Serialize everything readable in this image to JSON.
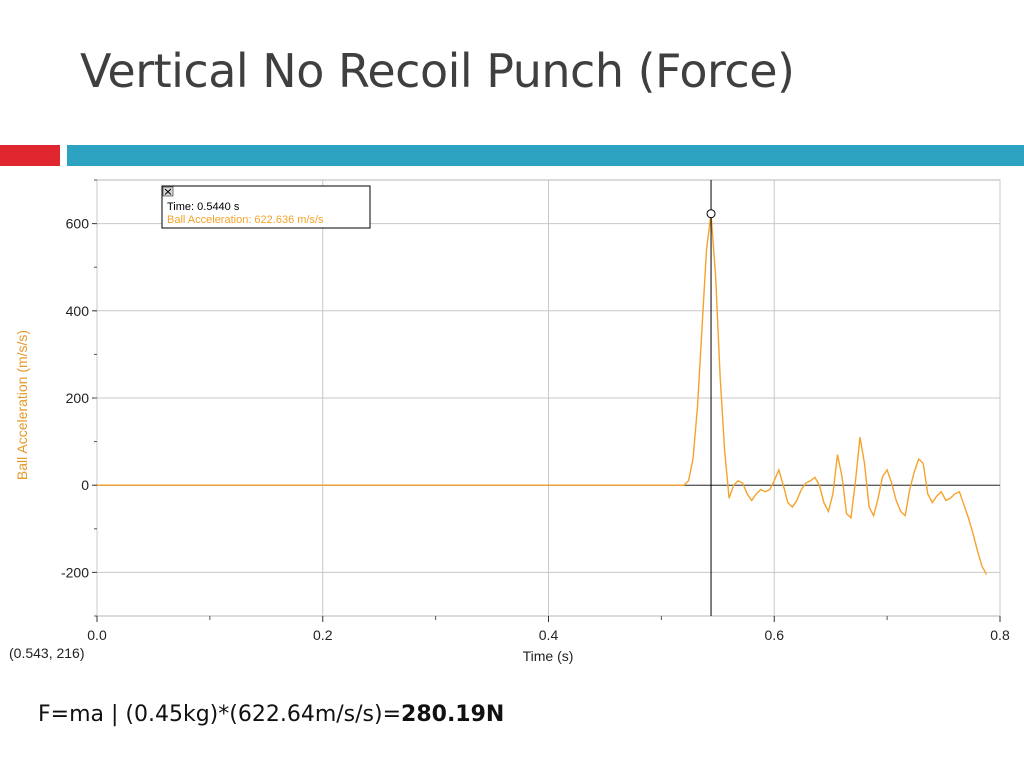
{
  "slide": {
    "title": "Vertical No Recoil Punch (Force)",
    "formula_prefix": "F=ma | (0.45kg)*(622.64m/s/s)=",
    "formula_result": "280.19N"
  },
  "colors": {
    "accent_red": "#e0262f",
    "accent_blue": "#2ea3c1",
    "series": "#f5a32b",
    "cursor": "#000000"
  },
  "chart_data": {
    "type": "line",
    "xlabel": "Time (s)",
    "ylabel": "Ball Acceleration (m/s/s)",
    "xlim": [
      0.0,
      0.8
    ],
    "ylim": [
      -300,
      700
    ],
    "xticks": [
      "0.0",
      "0.2",
      "0.4",
      "0.6",
      "0.8"
    ],
    "yticks": [
      "-200",
      "0",
      "200",
      "400",
      "600"
    ],
    "grid": true,
    "cursor_readout": "(0.543, 216)",
    "tooltip": {
      "time_text": "Time: 0.5440 s",
      "value_text": "Ball Acceleration: 622.636 m/s/s",
      "close_icon": "close-icon"
    },
    "cursor_x": 0.544,
    "marker": {
      "x": 0.544,
      "y": 622.636
    },
    "series": [
      {
        "x": [
          0.0,
          0.52,
          0.524,
          0.528,
          0.532,
          0.536,
          0.54,
          0.544,
          0.548,
          0.552,
          0.556,
          0.56,
          0.564,
          0.568,
          0.572,
          0.576,
          0.58,
          0.584,
          0.588,
          0.592,
          0.596,
          0.6,
          0.604,
          0.608,
          0.612,
          0.616,
          0.62,
          0.624,
          0.628,
          0.632,
          0.636,
          0.64,
          0.644,
          0.648,
          0.652,
          0.656,
          0.66,
          0.664,
          0.668,
          0.672,
          0.676,
          0.68,
          0.684,
          0.688,
          0.692,
          0.696,
          0.7,
          0.704,
          0.708,
          0.712,
          0.716,
          0.72,
          0.724,
          0.728,
          0.732,
          0.736,
          0.74,
          0.744,
          0.748,
          0.752,
          0.756,
          0.76,
          0.764,
          0.768,
          0.772,
          0.776,
          0.78,
          0.784,
          0.788
        ],
        "y": [
          0,
          0,
          10,
          60,
          180,
          360,
          540,
          622,
          480,
          250,
          80,
          -30,
          0,
          10,
          5,
          -20,
          -35,
          -20,
          -10,
          -15,
          -10,
          10,
          35,
          0,
          -40,
          -50,
          -35,
          -10,
          5,
          10,
          18,
          0,
          -40,
          -60,
          -20,
          70,
          20,
          -65,
          -75,
          10,
          110,
          50,
          -50,
          -70,
          -30,
          20,
          35,
          5,
          -35,
          -60,
          -70,
          -10,
          30,
          60,
          50,
          -20,
          -40,
          -25,
          -15,
          -35,
          -30,
          -20,
          -15,
          -45,
          -75,
          -110,
          -150,
          -185,
          -205
        ]
      }
    ]
  }
}
